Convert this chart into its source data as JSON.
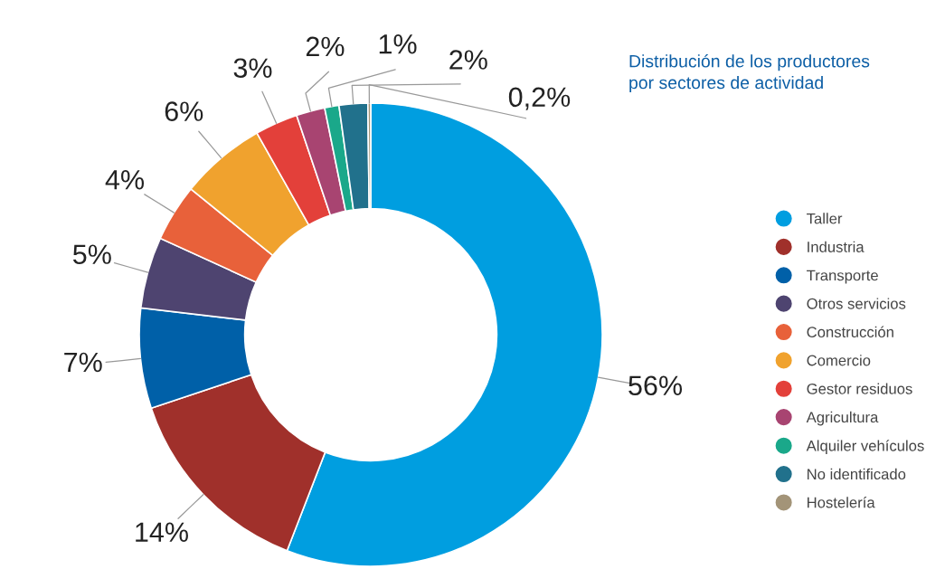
{
  "chart_data": {
    "type": "donut",
    "title": "Distribución de los productores\npor sectores de actividad",
    "categories": [
      "Taller",
      "Industria",
      "Transporte",
      "Otros servicios",
      "Construcción",
      "Comercio",
      "Gestor residuos",
      "Agricultura",
      "Alquiler vehículos",
      "No identificado",
      "Hostelería"
    ],
    "values": [
      56,
      14,
      7,
      5,
      4,
      6,
      3,
      2,
      1,
      2,
      0.2
    ],
    "value_labels": [
      "56%",
      "14%",
      "7%",
      "5%",
      "4%",
      "6%",
      "3%",
      "2%",
      "1%",
      "2%",
      "0,2%"
    ],
    "colors": [
      "#009ee0",
      "#a0302b",
      "#0060a8",
      "#4e4470",
      "#e8613a",
      "#f0a22e",
      "#e3403a",
      "#a84471",
      "#1aa88a",
      "#21718c",
      "#a39478"
    ],
    "legend": "right"
  }
}
